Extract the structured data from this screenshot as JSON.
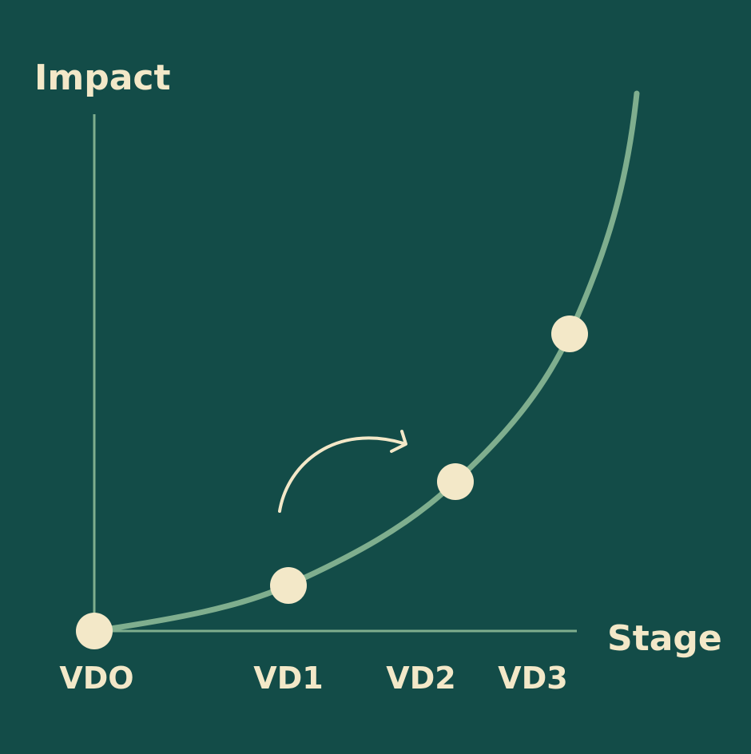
{
  "axes": {
    "y_label": "Impact",
    "x_label": "Stage"
  },
  "stages": [
    "VDO",
    "VD1",
    "VD2",
    "VD3"
  ]
}
